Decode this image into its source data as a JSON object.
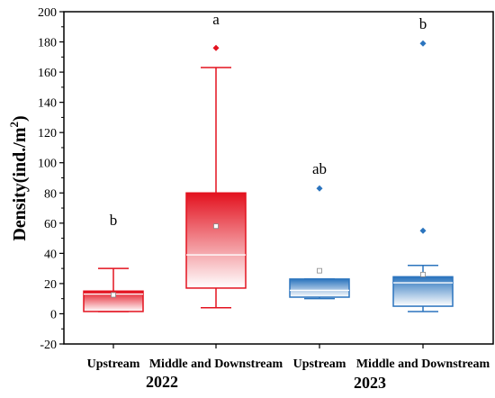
{
  "chart_data": {
    "type": "box",
    "ylabel": "Density(ind./m2)",
    "ylabel_parts": {
      "main": "Density(ind./m",
      "sup": "2",
      "end": ")"
    },
    "ylim": [
      -20,
      200
    ],
    "yticks": [
      -20,
      0,
      20,
      40,
      60,
      80,
      100,
      120,
      140,
      160,
      180,
      200
    ],
    "grid": false,
    "boxes": [
      {
        "category": "Upstream",
        "year": "2022",
        "letter": "b",
        "color": "#e3121f",
        "whisker_low": 1.5,
        "q1": 1.5,
        "median": 13,
        "q3": 15,
        "whisker_high": 30,
        "mean": 12.5,
        "outliers": []
      },
      {
        "category": "Middle and Downstream",
        "year": "2022",
        "letter": "a",
        "color": "#e3121f",
        "whisker_low": 4,
        "q1": 17,
        "median": 39,
        "q3": 80,
        "whisker_high": 163,
        "mean": 58,
        "outliers": [
          176
        ]
      },
      {
        "category": "Upstream",
        "year": "2023",
        "letter": "ab",
        "color": "#2b74be",
        "whisker_low": 10,
        "q1": 11,
        "median": 15.5,
        "q3": 23,
        "whisker_high": 23,
        "mean": 28.5,
        "outliers": [
          83
        ]
      },
      {
        "category": "Middle and Downstream",
        "year": "2023",
        "letter": "b",
        "color": "#2b74be",
        "whisker_low": 1.5,
        "q1": 5,
        "median": 20.5,
        "q3": 24.5,
        "whisker_high": 32,
        "mean": 26,
        "outliers": [
          55,
          179
        ]
      }
    ],
    "year_groups": [
      "2022",
      "2023"
    ]
  }
}
